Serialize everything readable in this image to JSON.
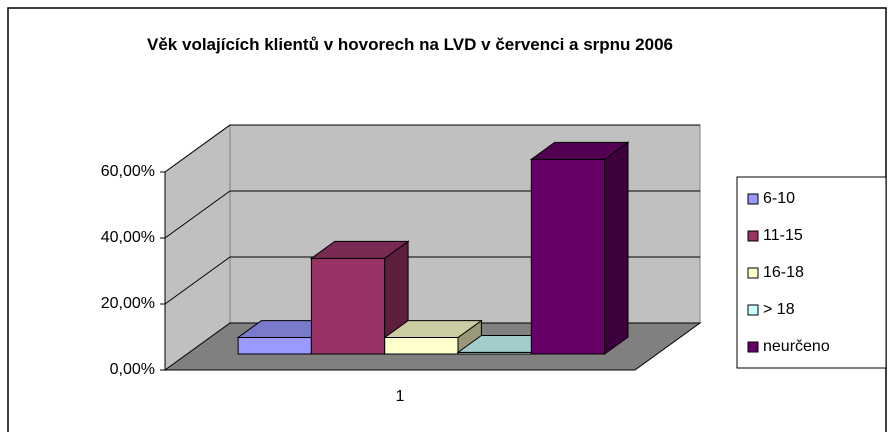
{
  "chart_data": {
    "type": "bar3d",
    "title": "Věk volajících klientů v hovorech na LVD v červenci a srpnu 2006",
    "categories": [
      "1"
    ],
    "series": [
      {
        "name": "6-10",
        "color": "#9999ff",
        "values": [
          5
        ]
      },
      {
        "name": "11-15",
        "color": "#993366",
        "values": [
          29
        ]
      },
      {
        "name": "16-18",
        "color": "#ffffcc",
        "values": [
          5
        ]
      },
      {
        "name": "> 18",
        "color": "#ccffff",
        "values": [
          0.5
        ]
      },
      {
        "name": "neurčeno",
        "color": "#660066",
        "values": [
          59
        ]
      }
    ],
    "ylim": [
      0,
      60
    ],
    "yticks": [
      {
        "value": 0,
        "label": "0,00%"
      },
      {
        "value": 20,
        "label": "20,00%"
      },
      {
        "value": 40,
        "label": "40,00%"
      },
      {
        "value": 60,
        "label": "60,00%"
      }
    ],
    "grid": true,
    "legend": "right"
  }
}
